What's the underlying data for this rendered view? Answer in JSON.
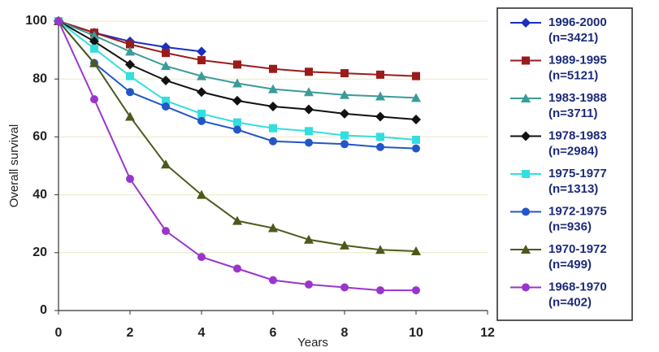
{
  "chart_data": {
    "type": "line",
    "xlabel": "Years",
    "ylabel": "Overall survival",
    "x": [
      0,
      1,
      2,
      3,
      4,
      5,
      6,
      7,
      8,
      9,
      10
    ],
    "xlim": [
      0,
      12
    ],
    "xticks": [
      0,
      2,
      4,
      6,
      8,
      10,
      12
    ],
    "ylim": [
      0,
      100
    ],
    "yticks": [
      0,
      20,
      40,
      60,
      80,
      100
    ],
    "grid": true,
    "legend": "right",
    "series": [
      {
        "name": "1996-2000 (n=3421)",
        "color": "#1a2fbf",
        "marker": "diamond",
        "values": [
          100,
          96,
          93,
          91,
          89.5,
          null,
          null,
          null,
          null,
          null,
          null
        ]
      },
      {
        "name": "1989-1995 (n=5121)",
        "color": "#9b1b1b",
        "marker": "square",
        "values": [
          100,
          96,
          92,
          89,
          86.5,
          85,
          83.5,
          82.5,
          82,
          81.5,
          81
        ]
      },
      {
        "name": "1983-1988 (n=3711)",
        "color": "#3a9c98",
        "marker": "triangle",
        "values": [
          100,
          95,
          89.5,
          84.5,
          81,
          78.5,
          76.5,
          75.5,
          74.5,
          74,
          73.5
        ]
      },
      {
        "name": "1978-1983 (n=2984)",
        "color": "#111111",
        "marker": "diamond",
        "values": [
          100,
          93,
          85,
          79.5,
          75.5,
          72.5,
          70.5,
          69.5,
          68,
          67,
          66
        ]
      },
      {
        "name": "1975-1977 (n=1313)",
        "color": "#33dede",
        "marker": "square",
        "values": [
          100,
          90.5,
          81,
          72.5,
          68,
          65,
          63,
          62,
          60.5,
          60,
          59
        ]
      },
      {
        "name": "1972-1975 (n=936)",
        "color": "#2356c8",
        "marker": "circle",
        "values": [
          100,
          85.5,
          75.5,
          70.5,
          65.5,
          62.5,
          58.5,
          58,
          57.5,
          56.5,
          56
        ]
      },
      {
        "name": "1970-1972 (n=499)",
        "color": "#4b5a1c",
        "marker": "triangle",
        "values": [
          100,
          85.5,
          67,
          50.5,
          40,
          31,
          28.5,
          24.5,
          22.5,
          21,
          20.5
        ]
      },
      {
        "name": "1968-1970 (n=402)",
        "color": "#9a35cc",
        "marker": "circle",
        "values": [
          100,
          73,
          45.5,
          27.5,
          18.5,
          14.5,
          10.5,
          9,
          8,
          7,
          7
        ]
      }
    ]
  }
}
